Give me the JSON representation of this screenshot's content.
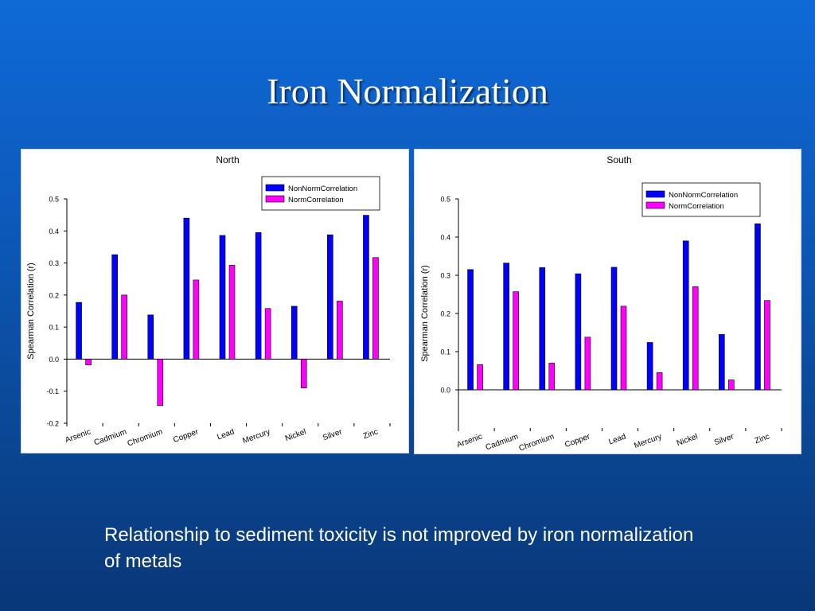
{
  "slide": {
    "title": "Iron Normalization",
    "caption": "Relationship to sediment toxicity is not improved by iron normalization of metals"
  },
  "colors": {
    "series_nonnorm": "#0000ff",
    "series_norm": "#ff00ff",
    "background_top": "#0f6ad6",
    "background_bottom": "#093777"
  },
  "chart_data": [
    {
      "type": "bar",
      "title": "North",
      "xlabel": "",
      "ylabel": "Spearman Correlation (r)",
      "ylim": [
        -0.2,
        0.5
      ],
      "yticks": [
        "-0.2",
        "-0.1",
        "0.0",
        "0.1",
        "0.2",
        "0.3",
        "0.4",
        "0.5"
      ],
      "categories": [
        "Arsenic",
        "Cadmium",
        "Chromium",
        "Copper",
        "Lead",
        "Mercury",
        "Nickel",
        "Silver",
        "Zinc"
      ],
      "series": [
        {
          "name": "NonNormCorrelation",
          "values": [
            0.177,
            0.326,
            0.138,
            0.44,
            0.386,
            0.395,
            0.165,
            0.388,
            0.449
          ]
        },
        {
          "name": "NormCorrelation",
          "values": [
            -0.018,
            0.2,
            -0.145,
            0.247,
            0.293,
            0.158,
            -0.09,
            0.181,
            0.317
          ]
        }
      ],
      "legend": "top-right",
      "grid": false
    },
    {
      "type": "bar",
      "title": "South",
      "xlabel": "",
      "ylabel": "Spearman Correlation (r)",
      "ylim": [
        -0.1,
        0.5
      ],
      "yticks": [
        "0.0",
        "0.1",
        "0.2",
        "0.3",
        "0.4",
        "0.5"
      ],
      "categories": [
        "Arsenic",
        "Cadmium",
        "Chromium",
        "Copper",
        "Lead",
        "Mercury",
        "Nickel",
        "Silver",
        "Zinc"
      ],
      "series": [
        {
          "name": "NonNormCorrelation",
          "values": [
            0.315,
            0.332,
            0.32,
            0.304,
            0.321,
            0.124,
            0.39,
            0.145,
            0.435
          ]
        },
        {
          "name": "NormCorrelation",
          "values": [
            0.066,
            0.257,
            0.07,
            0.138,
            0.219,
            0.045,
            0.27,
            0.026,
            0.234
          ]
        }
      ],
      "legend": "top-right",
      "grid": false
    }
  ]
}
